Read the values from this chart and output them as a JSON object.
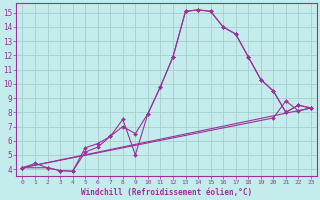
{
  "xlabel": "Windchill (Refroidissement éolien,°C)",
  "bg_color": "#c5ecec",
  "grid_color": "#a0c8c8",
  "line_color": "#993399",
  "xlim": [
    -0.5,
    23.5
  ],
  "ylim": [
    3.5,
    15.7
  ],
  "xticks": [
    0,
    1,
    2,
    3,
    4,
    5,
    6,
    7,
    8,
    9,
    10,
    11,
    12,
    13,
    14,
    15,
    16,
    17,
    18,
    19,
    20,
    21,
    22,
    23
  ],
  "yticks": [
    4,
    5,
    6,
    7,
    8,
    9,
    10,
    11,
    12,
    13,
    14,
    15
  ],
  "line1_x": [
    0,
    1,
    2,
    3,
    4,
    5,
    6,
    7,
    8,
    9,
    10,
    11,
    12,
    13,
    14,
    15,
    16,
    17,
    18,
    19,
    20,
    21,
    22,
    23
  ],
  "line1_y": [
    4.1,
    4.4,
    4.1,
    3.9,
    3.85,
    5.2,
    5.55,
    6.3,
    7.5,
    5.0,
    7.9,
    9.8,
    11.9,
    15.1,
    15.2,
    15.1,
    14.0,
    13.5,
    11.9,
    10.3,
    9.5,
    8.0,
    8.5,
    8.3
  ],
  "line2_x": [
    0,
    2,
    3,
    4,
    5,
    6,
    7,
    8,
    9,
    10,
    11,
    12,
    13,
    14,
    15,
    16,
    17,
    18,
    19,
    20,
    21,
    22,
    23
  ],
  "line2_y": [
    4.1,
    4.1,
    3.9,
    3.85,
    5.5,
    5.8,
    6.3,
    7.0,
    6.5,
    7.9,
    9.8,
    11.9,
    15.1,
    15.2,
    15.1,
    14.0,
    13.5,
    11.9,
    10.3,
    9.5,
    8.0,
    8.5,
    8.3
  ],
  "line3_x": [
    0,
    23
  ],
  "line3_y": [
    4.1,
    8.3
  ],
  "line4_x": [
    0,
    20,
    21,
    22,
    23
  ],
  "line4_y": [
    4.1,
    7.6,
    8.8,
    8.1,
    8.3
  ]
}
